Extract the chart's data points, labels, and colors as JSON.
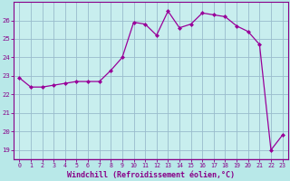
{
  "x": [
    0,
    1,
    2,
    3,
    4,
    5,
    6,
    7,
    8,
    9,
    10,
    11,
    12,
    13,
    14,
    15,
    16,
    17,
    18,
    19,
    20,
    21,
    22,
    23
  ],
  "y": [
    22.9,
    22.4,
    22.4,
    22.5,
    22.6,
    22.7,
    22.7,
    22.7,
    23.3,
    24.0,
    25.9,
    25.8,
    25.2,
    26.5,
    25.6,
    25.8,
    26.4,
    26.3,
    26.2,
    25.7,
    25.4,
    24.7,
    19.0,
    19.8
  ],
  "line_color": "#990099",
  "marker": "D",
  "marker_size": 2.0,
  "bg_color": "#b8e8e8",
  "plot_bg_color": "#c8eeee",
  "grid_color": "#99bbcc",
  "xlabel": "Windchill (Refroidissement éolien,°C)",
  "xlabel_color": "#880088",
  "tick_color": "#880088",
  "axis_color": "#880088",
  "ylim": [
    18.5,
    27.0
  ],
  "yticks": [
    19,
    20,
    21,
    22,
    23,
    24,
    25,
    26
  ],
  "xlim": [
    -0.5,
    23.5
  ],
  "xticks": [
    0,
    1,
    2,
    3,
    4,
    5,
    6,
    7,
    8,
    9,
    10,
    11,
    12,
    13,
    14,
    15,
    16,
    17,
    18,
    19,
    20,
    21,
    22,
    23
  ],
  "font_family": "monospace",
  "xlabel_fontsize": 6.0,
  "xtick_fontsize": 4.8,
  "ytick_fontsize": 5.2
}
